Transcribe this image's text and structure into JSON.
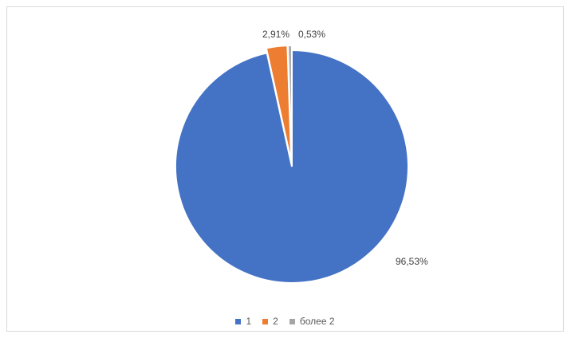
{
  "chart_data": {
    "type": "pie",
    "title": "",
    "categories": [
      "1",
      "2",
      "более 2"
    ],
    "values": [
      96.53,
      2.91,
      0.53
    ],
    "data_labels": [
      "96,53%",
      "2,91%",
      "0,53%"
    ],
    "colors": [
      "#4472c4",
      "#ed7d31",
      "#a5a5a5"
    ],
    "exploded_slices": [
      "2",
      "более 2"
    ],
    "legend": {
      "placement": "bottom",
      "entries": [
        "1",
        "2",
        "более 2"
      ]
    }
  }
}
